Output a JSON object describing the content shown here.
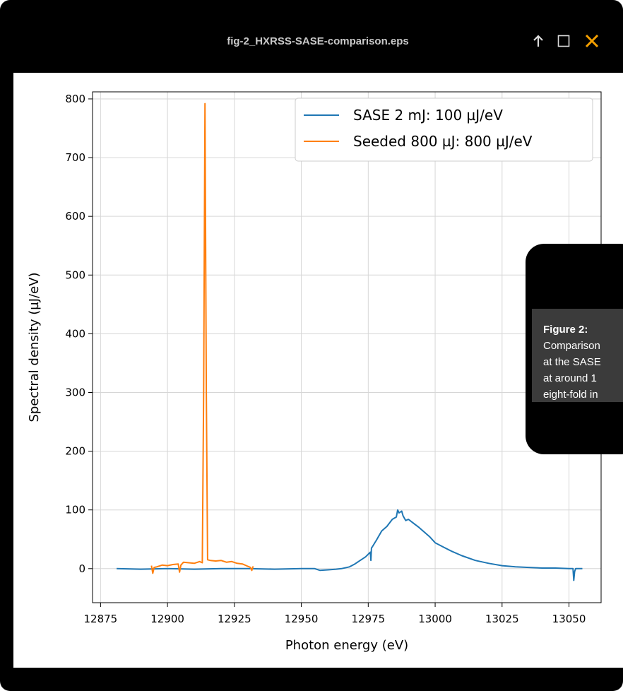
{
  "window": {
    "title": "fig-2_HXRSS-SASE-comparison.eps",
    "accent_color": "#f5a000",
    "icons": [
      "up-arrow-icon",
      "maximize-icon",
      "close-icon"
    ]
  },
  "caption": {
    "title": "Figure 2:",
    "lines": [
      "Comparison",
      "at the SASE",
      "at around 1",
      "eight-fold in"
    ]
  },
  "chart_data": {
    "type": "line",
    "xlabel": "Photon energy (eV)",
    "ylabel": "Spectral density (µJ/eV)",
    "xlim": [
      12872,
      13062
    ],
    "ylim": [
      -58,
      812
    ],
    "xticks": [
      12875,
      12900,
      12925,
      12950,
      12975,
      13000,
      13025,
      13050
    ],
    "yticks": [
      0,
      100,
      200,
      300,
      400,
      500,
      600,
      700,
      800
    ],
    "grid": true,
    "legend_position": "top-right",
    "series": [
      {
        "name": "SASE 2 mJ: 100 µJ/eV",
        "color": "#1f77b4",
        "x": [
          12881,
          12890,
          12900,
          12910,
          12920,
          12930,
          12940,
          12950,
          12955,
          12957,
          12960,
          12963,
          12965,
          12968,
          12970,
          12972,
          12974,
          12975.8,
          12976,
          12976.2,
          12976.5,
          12978,
          12980,
          12982,
          12984,
          12985.5,
          12986,
          12986.5,
          12987.5,
          12988,
          12989,
          12990,
          12992,
          12994,
          12996,
          12998,
          13000,
          13003,
          13006,
          13010,
          13015,
          13020,
          13025,
          13030,
          13035,
          13040,
          13045,
          13050,
          13051.5,
          13051.8,
          13052.1,
          13052.5,
          13055
        ],
        "y": [
          0,
          -1,
          0,
          -1,
          0,
          0,
          -1,
          0,
          0,
          -3,
          -2,
          -1,
          0,
          3,
          8,
          14,
          20,
          28,
          14,
          35,
          37,
          48,
          64,
          72,
          84,
          88,
          100,
          95,
          98,
          90,
          82,
          84,
          77,
          70,
          62,
          54,
          44,
          37,
          30,
          22,
          14,
          9,
          5,
          3,
          2,
          1,
          1,
          0,
          0,
          -20,
          -5,
          0,
          0
        ]
      },
      {
        "name": "Seeded 800 µJ: 800 µJ/eV",
        "color": "#ff7f0e",
        "x": [
          12894,
          12894.5,
          12895,
          12896,
          12898,
          12900,
          12902,
          12904,
          12904.5,
          12905,
          12906,
          12908,
          12910,
          12912,
          12913,
          12913.5,
          12914,
          12914.5,
          12915,
          12916,
          12918,
          12920,
          12922,
          12924,
          12926,
          12928,
          12930,
          12931,
          12931.5,
          12932
        ],
        "y": [
          5,
          -8,
          2,
          3,
          6,
          5,
          7,
          8,
          -6,
          6,
          11,
          10,
          9,
          12,
          10,
          300,
          792,
          300,
          15,
          14,
          13,
          14,
          11,
          12,
          9,
          8,
          4,
          2,
          -3,
          4
        ]
      }
    ]
  }
}
